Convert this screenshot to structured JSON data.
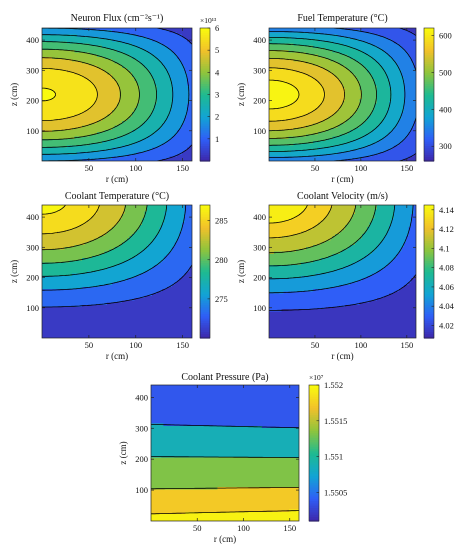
{
  "figure": {
    "charts": [
      {
        "id": "neutron-flux",
        "title": "Neuron Flux (cm⁻²s⁻¹)",
        "xlabel": "r (cm)",
        "ylabel": "z (cm)",
        "colorbar_exponent": "×10¹³"
      },
      {
        "id": "fuel-temperature",
        "title": "Fuel Temperature (°C)",
        "xlabel": "r (cm)",
        "ylabel": "z (cm)",
        "colorbar_exponent": ""
      },
      {
        "id": "coolant-temperature",
        "title": "Coolant Temperature (°C)",
        "xlabel": "r (cm)",
        "ylabel": "z (cm)",
        "colorbar_exponent": ""
      },
      {
        "id": "coolant-velocity",
        "title": "Coolant Velocity (m/s)",
        "xlabel": "r (cm)",
        "ylabel": "z (cm)",
        "colorbar_exponent": ""
      },
      {
        "id": "coolant-pressure",
        "title": "Coolant Pressure (Pa)",
        "xlabel": "r (cm)",
        "ylabel": "z (cm)",
        "colorbar_exponent": "×10⁷"
      }
    ]
  },
  "chart_data": [
    {
      "type": "heatmap",
      "title": "Neuron Flux (cm⁻²s⁻¹)",
      "xlabel": "r (cm)",
      "ylabel": "z (cm)",
      "xlim": [
        0,
        160
      ],
      "ylim": [
        0,
        440
      ],
      "x_ticks": [
        50,
        100,
        150
      ],
      "y_ticks": [
        100,
        200,
        300,
        400
      ],
      "colorbar": {
        "min": 0,
        "max": 6,
        "ticks": [
          1,
          2,
          3,
          4,
          5,
          6
        ],
        "exponent": "×10¹³"
      },
      "field": "cosine-bessel",
      "colormap": [
        "#3e26a8",
        "#2f5ef7",
        "#12a4d4",
        "#1eba91",
        "#8fc43c",
        "#f2c12a",
        "#f9fb0e"
      ],
      "contour_levels": [
        0.7,
        1.45,
        2.2,
        2.95,
        3.7,
        4.45,
        5.2,
        5.95
      ],
      "contour_color": "#000000"
    },
    {
      "type": "heatmap",
      "title": "Fuel Temperature (°C)",
      "xlabel": "r (cm)",
      "ylabel": "z (cm)",
      "xlim": [
        0,
        160
      ],
      "ylim": [
        0,
        440
      ],
      "x_ticks": [
        50,
        100,
        150
      ],
      "y_ticks": [
        100,
        200,
        300,
        400
      ],
      "colorbar": {
        "min": 260,
        "max": 620,
        "ticks": [
          300,
          400,
          500,
          600
        ],
        "exponent": ""
      },
      "field": "cosine-bessel",
      "colormap": [
        "#3e26a8",
        "#2f5ef7",
        "#12a4d4",
        "#1eba91",
        "#8fc43c",
        "#f2c12a",
        "#f9fb0e"
      ],
      "contour_levels": [
        290,
        330,
        370,
        410,
        450,
        490,
        530,
        570,
        605
      ],
      "contour_color": "#000000"
    },
    {
      "type": "heatmap",
      "title": "Coolant Temperature (°C)",
      "xlabel": "r (cm)",
      "ylabel": "z (cm)",
      "xlim": [
        0,
        160
      ],
      "ylim": [
        0,
        440
      ],
      "x_ticks": [
        50,
        100,
        150
      ],
      "y_ticks": [
        100,
        200,
        300,
        400
      ],
      "colorbar": {
        "min": 270,
        "max": 287,
        "ticks": [
          275,
          280,
          285
        ],
        "exponent": ""
      },
      "field": "axial-heating",
      "colormap": [
        "#3e26a8",
        "#2f5ef7",
        "#12a4d4",
        "#1eba91",
        "#8fc43c",
        "#f2c12a",
        "#f9fb0e"
      ],
      "contour_levels": [
        272,
        274.5,
        277,
        279.5,
        282,
        284.5,
        286.5
      ],
      "contour_color": "#000000"
    },
    {
      "type": "heatmap",
      "title": "Coolant Velocity (m/s)",
      "xlabel": "r (cm)",
      "ylabel": "z (cm)",
      "xlim": [
        0,
        160
      ],
      "ylim": [
        0,
        440
      ],
      "x_ticks": [
        50,
        100,
        150
      ],
      "y_ticks": [
        100,
        200,
        300,
        400
      ],
      "colorbar": {
        "min": 4.007,
        "max": 4.145,
        "ticks": [
          4.02,
          4.04,
          4.06,
          4.08,
          4.1,
          4.12,
          4.14
        ],
        "exponent": ""
      },
      "field": "axial-heating",
      "colormap": [
        "#3e26a8",
        "#2f5ef7",
        "#12a4d4",
        "#1eba91",
        "#8fc43c",
        "#f2c12a",
        "#f9fb0e"
      ],
      "contour_levels": [
        4.02,
        4.04,
        4.06,
        4.08,
        4.1,
        4.12,
        4.135
      ],
      "contour_color": "#000000"
    },
    {
      "type": "heatmap",
      "title": "Coolant Pressure (Pa)",
      "xlabel": "r (cm)",
      "ylabel": "z (cm)",
      "xlim": [
        0,
        160
      ],
      "ylim": [
        0,
        440
      ],
      "x_ticks": [
        50,
        100,
        150
      ],
      "y_ticks": [
        100,
        200,
        300,
        400
      ],
      "colorbar": {
        "min": 1.5501,
        "max": 1.552,
        "ticks": [
          1.5505,
          1.551,
          1.5515,
          1.552
        ],
        "exponent": "×10⁷"
      },
      "field": "axial-pressure-drop",
      "colormap": [
        "#3e26a8",
        "#2f5ef7",
        "#12a4d4",
        "#1eba91",
        "#8fc43c",
        "#f2c12a",
        "#f9fb0e"
      ],
      "contour_levels": [
        1.55065,
        1.5511,
        1.55155,
        1.5519
      ],
      "contour_color": "#000000"
    }
  ]
}
